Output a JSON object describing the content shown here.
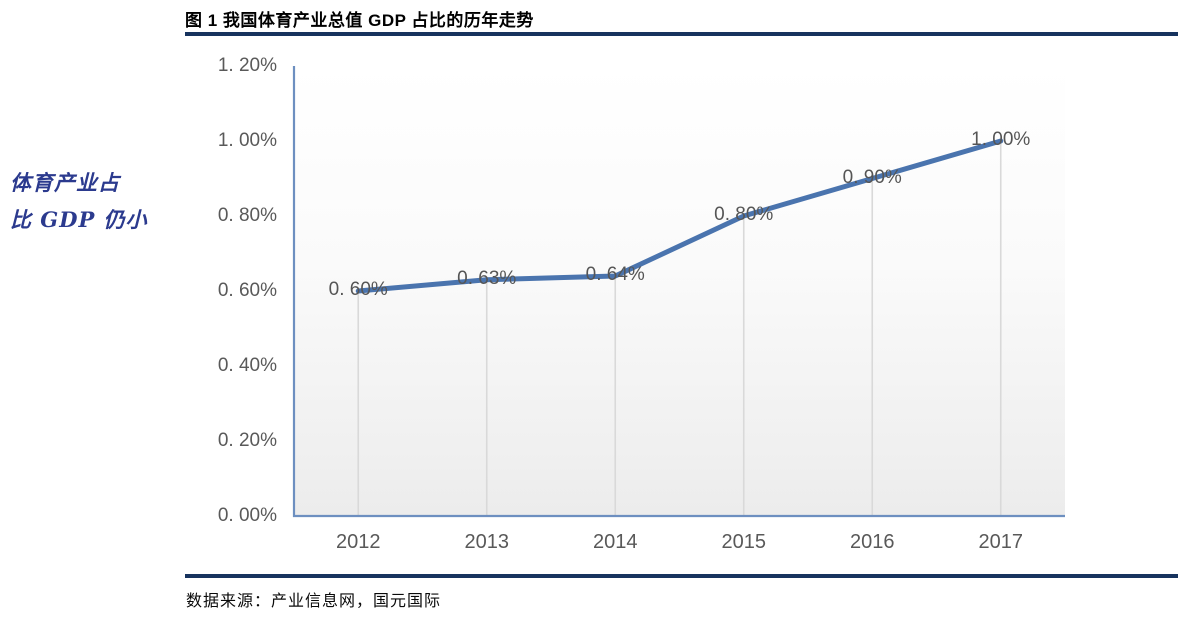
{
  "header": {
    "title": "图 1 我国体育产业总值 GDP 占比的历年走势"
  },
  "sidebar": {
    "note_line1": "体育产业占",
    "note_line2": "比 GDP 仍小"
  },
  "footer": {
    "source": "数据来源：产业信息网，国元国际"
  },
  "colors": {
    "series_line": "#4a74ae",
    "axis_line": "#6d8fc0",
    "drop_line": "#d9d9d9",
    "tick_label": "#595959",
    "navy_rule": "#17335e",
    "sidebar_text": "#2b3a8e"
  },
  "chart_data": {
    "type": "line",
    "title": "图 1 我国体育产业总值 GDP 占比的历年走势",
    "categories": [
      "2012",
      "2013",
      "2014",
      "2015",
      "2016",
      "2017"
    ],
    "values": [
      0.6,
      0.63,
      0.64,
      0.8,
      0.9,
      1.0
    ],
    "point_labels": [
      "0. 60%",
      "0. 63%",
      "0. 64%",
      "0. 80%",
      "0. 90%",
      "1. 00%"
    ],
    "ytick_labels": [
      "0. 00%",
      "0. 20%",
      "0. 40%",
      "0. 60%",
      "0. 80%",
      "1. 00%",
      "1. 20%"
    ],
    "ytick_values": [
      0.0,
      0.2,
      0.4,
      0.6,
      0.8,
      1.0,
      1.2
    ],
    "xlabel": "",
    "ylabel": "",
    "ylim": [
      0,
      1.2
    ],
    "grid": "vertical drop lines from points only",
    "legend": "none",
    "marker": "none"
  }
}
